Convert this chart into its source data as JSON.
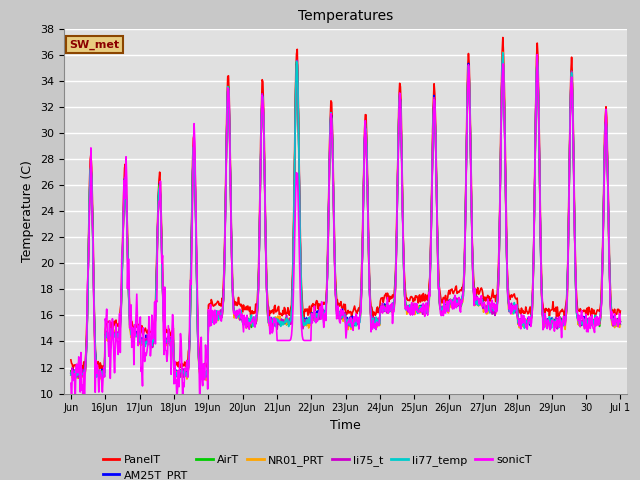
{
  "title": "Temperatures",
  "xlabel": "Time",
  "ylabel": "Temperature (C)",
  "ylim": [
    10,
    38
  ],
  "annotation": "SW_met",
  "fig_facecolor": "#c8c8c8",
  "plot_bg_color": "#e0e0e0",
  "series": {
    "PanelT": {
      "color": "#ff0000",
      "lw": 1.2
    },
    "AM25T_PRT": {
      "color": "#0000ff",
      "lw": 1.2
    },
    "AirT": {
      "color": "#00cc00",
      "lw": 1.2
    },
    "NR01_PRT": {
      "color": "#ffa500",
      "lw": 1.2
    },
    "li75_t": {
      "color": "#cc00cc",
      "lw": 1.2
    },
    "li77_temp": {
      "color": "#00cccc",
      "lw": 1.2
    },
    "sonicT": {
      "color": "#ff00ff",
      "lw": 1.2
    }
  },
  "xtick_labels": [
    "Jun",
    "16Jun",
    "17Jun",
    "18Jun",
    "19Jun",
    "20Jun",
    "21Jun",
    "22Jun",
    "23Jun",
    "24Jun",
    "25Jun",
    "26Jun",
    "27Jun",
    "28Jun",
    "29Jun",
    "30",
    "Jul 1"
  ],
  "ytick_values": [
    10,
    12,
    14,
    16,
    18,
    20,
    22,
    24,
    26,
    28,
    30,
    32,
    34,
    36,
    38
  ],
  "day_peaks": [
    27.5,
    26.5,
    26.0,
    29.0,
    33.5,
    33.0,
    35.5,
    31.5,
    30.5,
    33.0,
    32.5,
    35.0,
    36.0,
    35.5,
    34.5,
    31.0
  ],
  "night_mins": [
    11.5,
    14.5,
    14.0,
    11.5,
    16.0,
    15.5,
    15.5,
    16.0,
    15.5,
    16.5,
    16.5,
    17.0,
    16.5,
    15.5,
    15.5,
    15.5
  ],
  "peak_sharpness": 6.0
}
